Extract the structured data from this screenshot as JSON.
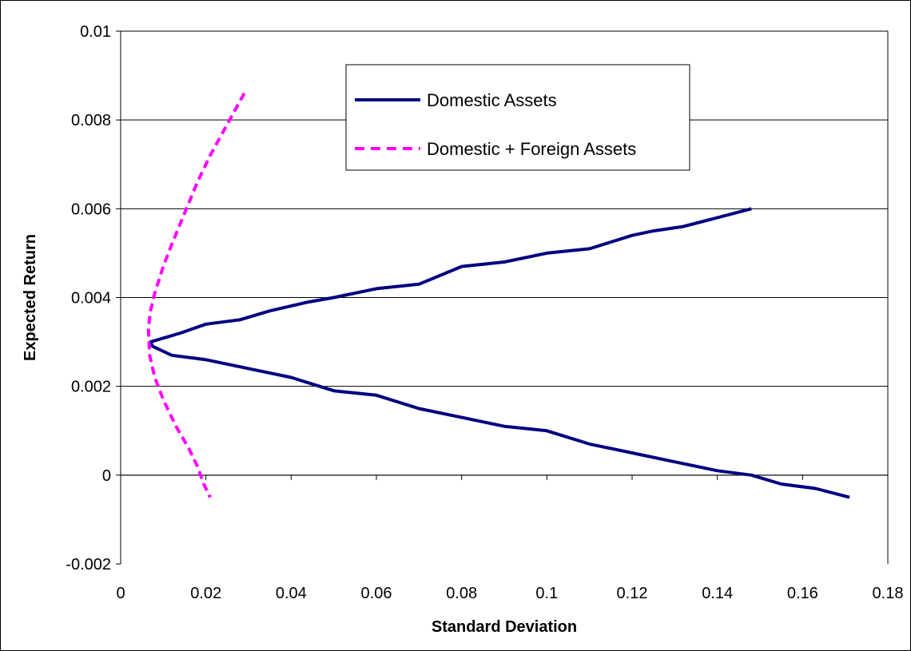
{
  "chart_data": {
    "type": "line",
    "title": "",
    "xlabel": "Standard Deviation",
    "ylabel": "Expected Return",
    "xlim": [
      0,
      0.18
    ],
    "ylim": [
      -0.002,
      0.01
    ],
    "x_ticks": [
      "0",
      "0.02",
      "0.04",
      "0.06",
      "0.08",
      "0.1",
      "0.12",
      "0.14",
      "0.16",
      "0.18"
    ],
    "y_ticks": [
      "-0.002",
      "0",
      "0.002",
      "0.004",
      "0.006",
      "0.008",
      "0.01"
    ],
    "grid": "horizontal",
    "legend_position": "top-right",
    "series": [
      {
        "name": "Domestic Assets",
        "color": "#000080",
        "style": "solid",
        "points": [
          [
            0.148,
            0.006
          ],
          [
            0.14,
            0.0058
          ],
          [
            0.132,
            0.0056
          ],
          [
            0.125,
            0.0055
          ],
          [
            0.12,
            0.0054
          ],
          [
            0.11,
            0.0051
          ],
          [
            0.1,
            0.005
          ],
          [
            0.09,
            0.0048
          ],
          [
            0.08,
            0.0047
          ],
          [
            0.07,
            0.0043
          ],
          [
            0.06,
            0.0042
          ],
          [
            0.05,
            0.004
          ],
          [
            0.044,
            0.0039
          ],
          [
            0.035,
            0.0037
          ],
          [
            0.028,
            0.0035
          ],
          [
            0.02,
            0.0034
          ],
          [
            0.014,
            0.0032
          ],
          [
            0.007,
            0.003
          ],
          [
            0.0075,
            0.0029
          ],
          [
            0.012,
            0.0027
          ],
          [
            0.02,
            0.0026
          ],
          [
            0.03,
            0.0024
          ],
          [
            0.04,
            0.0022
          ],
          [
            0.05,
            0.0019
          ],
          [
            0.06,
            0.0018
          ],
          [
            0.07,
            0.0015
          ],
          [
            0.08,
            0.0013
          ],
          [
            0.09,
            0.0011
          ],
          [
            0.1,
            0.001
          ],
          [
            0.11,
            0.0007
          ],
          [
            0.12,
            0.0005
          ],
          [
            0.13,
            0.0003
          ],
          [
            0.14,
            0.0001
          ],
          [
            0.148,
            0.0
          ],
          [
            0.155,
            -0.0002
          ],
          [
            0.163,
            -0.0003
          ],
          [
            0.171,
            -0.0005
          ]
        ]
      },
      {
        "name": "Domestic + Foreign Assets",
        "color": "#FF00FF",
        "style": "dashed",
        "points": [
          [
            0.029,
            0.0086
          ],
          [
            0.025,
            0.0079
          ],
          [
            0.021,
            0.0072
          ],
          [
            0.018,
            0.0066
          ],
          [
            0.015,
            0.0059
          ],
          [
            0.012,
            0.0052
          ],
          [
            0.01,
            0.0047
          ],
          [
            0.008,
            0.0041
          ],
          [
            0.007,
            0.0037
          ],
          [
            0.0065,
            0.0033
          ],
          [
            0.0068,
            0.0027
          ],
          [
            0.008,
            0.0022
          ],
          [
            0.01,
            0.0017
          ],
          [
            0.013,
            0.0011
          ],
          [
            0.016,
            0.0006
          ],
          [
            0.018,
            0.0002
          ],
          [
            0.0195,
            -0.0002
          ],
          [
            0.021,
            -0.0005
          ]
        ]
      }
    ]
  }
}
